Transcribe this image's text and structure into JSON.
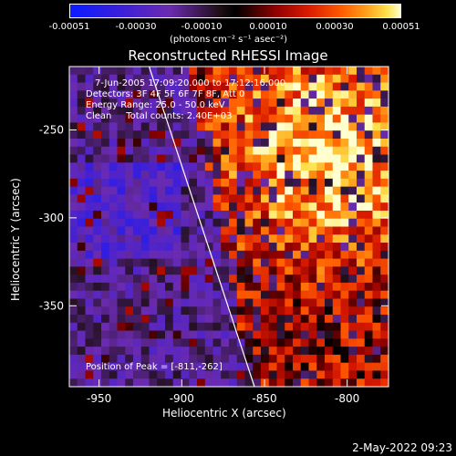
{
  "colorbar": {
    "ticks": [
      "-0.00051",
      "-0.00030",
      "-0.00010",
      "0.00010",
      "0.00030",
      "0.00051"
    ],
    "units_label": "(photons cm⁻² s⁻¹ asec⁻²)"
  },
  "title": "Reconstructed RHESSI Image",
  "annotations": {
    "time": "7-Jun-2005 17:09:20.000 to 17:12:16.000",
    "detectors": "Detectors: 3F 4F 5F 6F 7F 8F, Att 0",
    "energy": "Energy Range: 25.0 - 50.0 keV",
    "method": "Clean     Total counts: 2.40E+03",
    "peak": "Position of Peak = [-811,-262]"
  },
  "chart_data": {
    "type": "heatmap",
    "title": "Reconstructed RHESSI Image",
    "xlabel": "Heliocentric X (arcsec)",
    "ylabel": "Heliocentric Y (arcsec)",
    "xlim": [
      -968,
      -775
    ],
    "ylim": [
      -396,
      -214
    ],
    "xticks": [
      -950,
      -900,
      -850,
      -800
    ],
    "yticks": [
      -250,
      -300,
      -350
    ],
    "xtick_labels": [
      "-950",
      "-900",
      "-850",
      "-800"
    ],
    "ytick_labels": [
      "-250",
      "-300",
      "-350"
    ],
    "peak": [
      -811,
      -262
    ],
    "colorbar_range": [
      -0.00051,
      0.00051
    ]
  },
  "footer": {
    "date": "2-May-2022 09:23"
  }
}
